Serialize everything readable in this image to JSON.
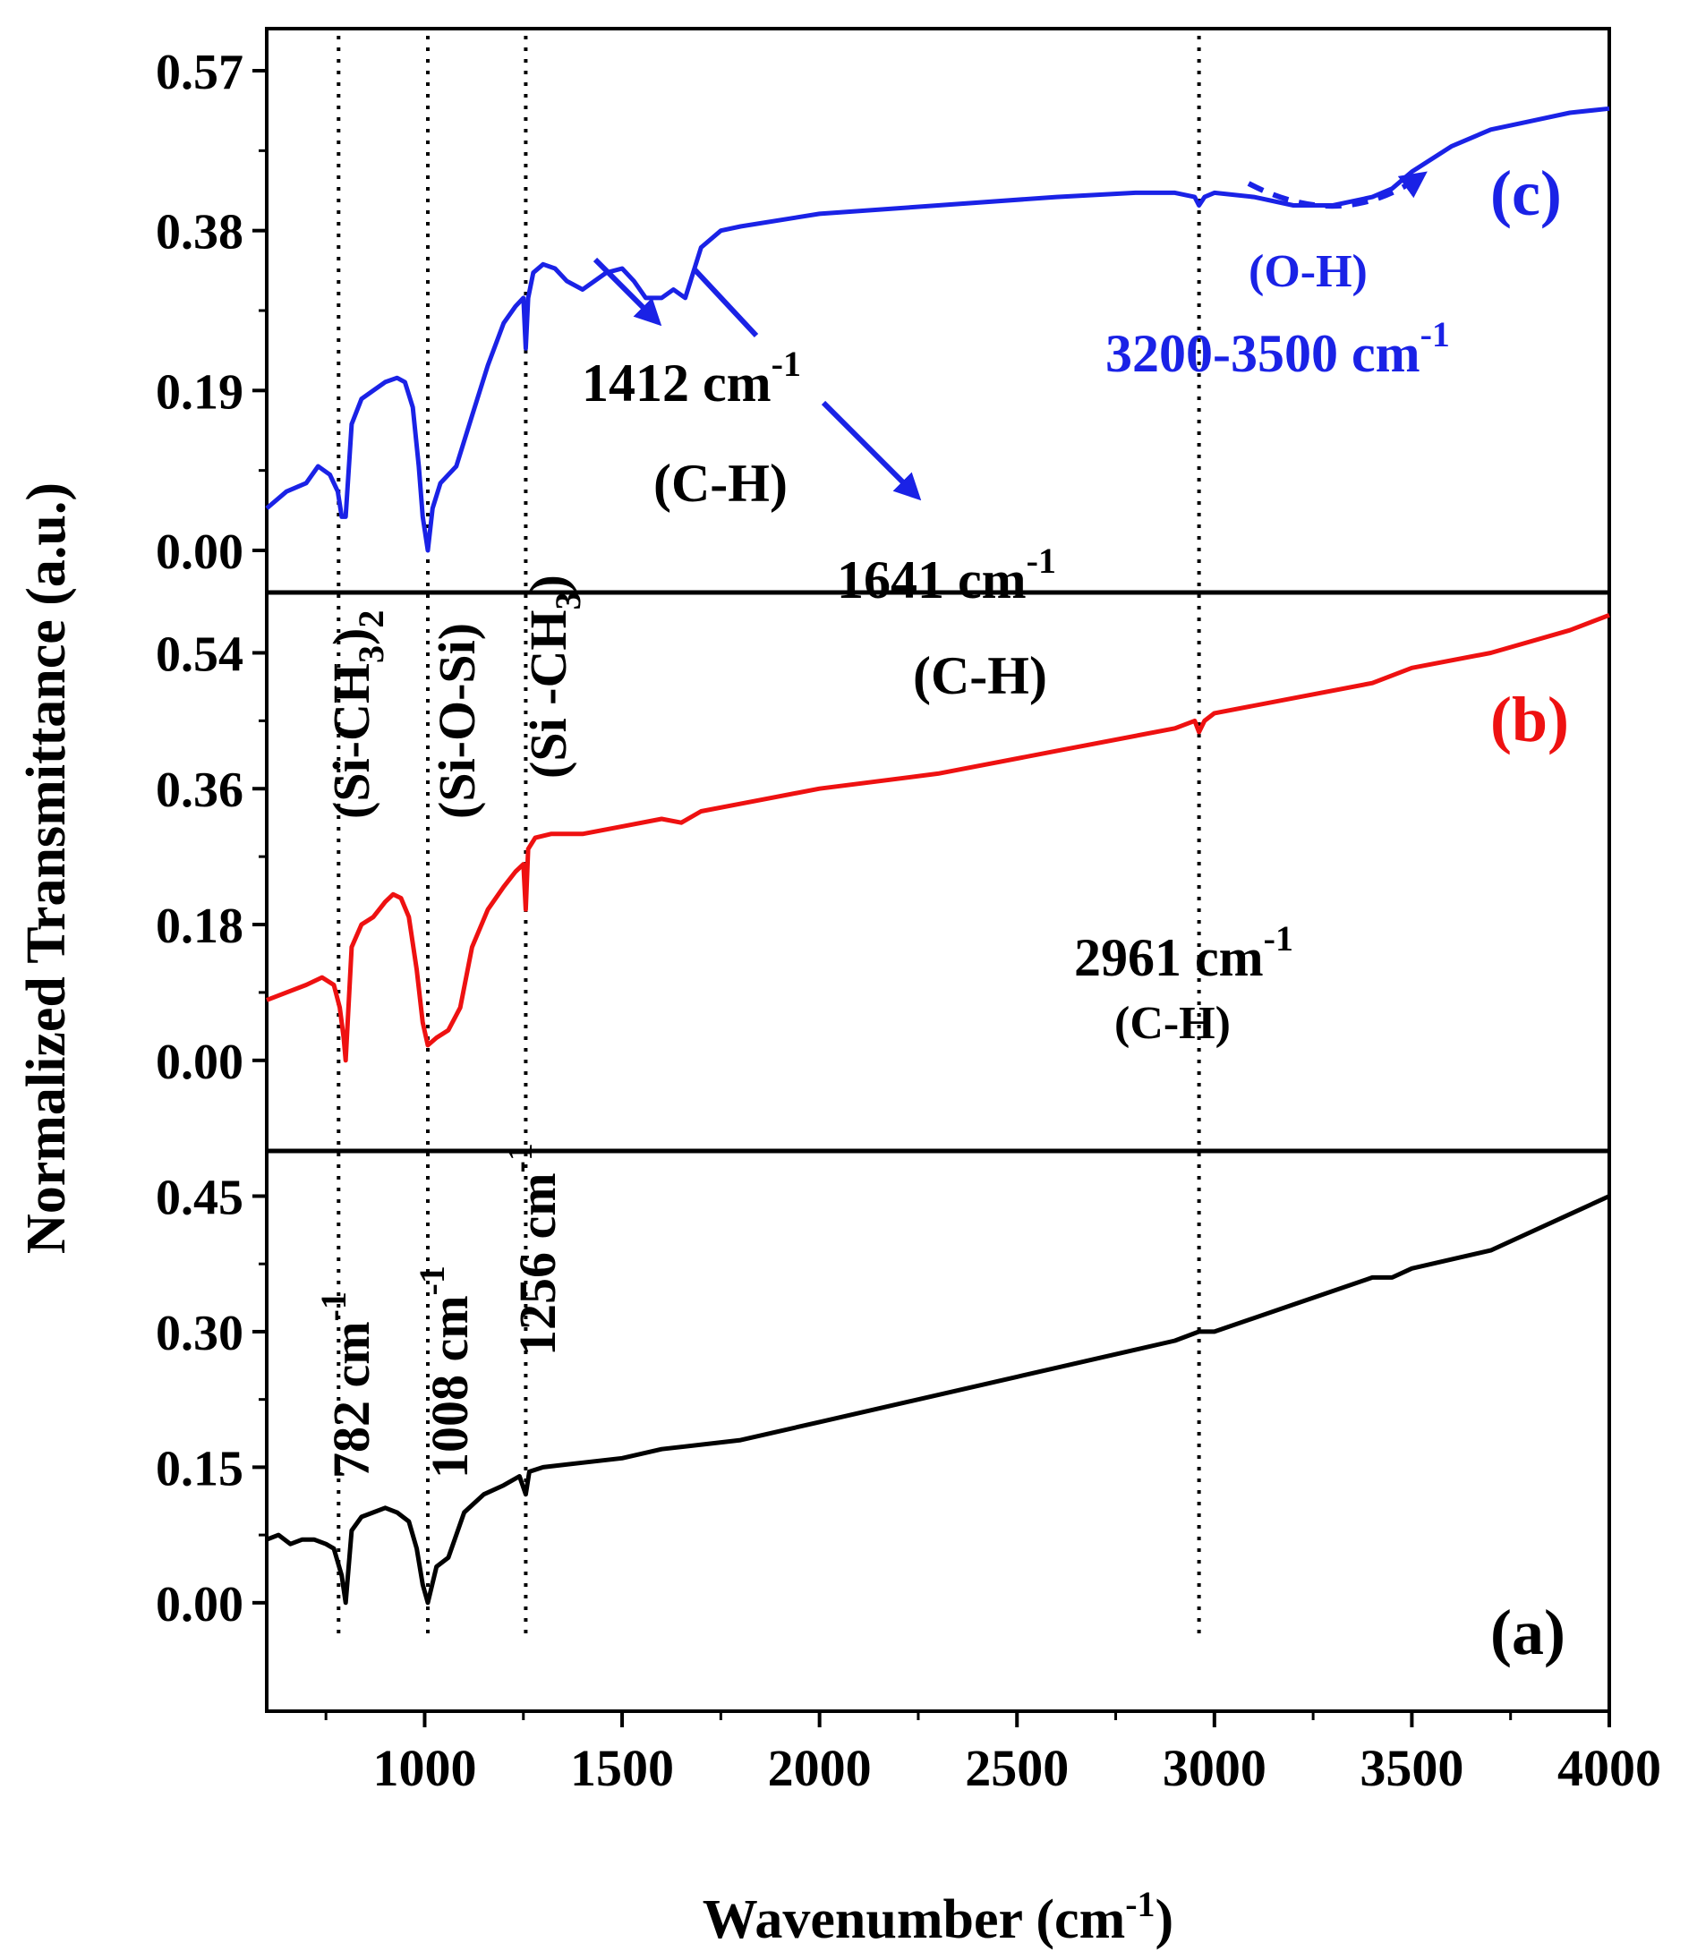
{
  "chart_data": {
    "type": "line",
    "title": "",
    "xlabel_main": "Wavenumber (cm",
    "xlabel_sup": "-1",
    "xlabel_tail": ")",
    "ylabel": "Normalized Transmittance (a.u.)",
    "xlim": [
      600,
      4000
    ],
    "x_ticks": [
      "1000",
      "1500",
      "2000",
      "2500",
      "3000",
      "3500",
      "4000"
    ],
    "x_tick_values": [
      1000,
      1500,
      2000,
      2500,
      3000,
      3500,
      4000
    ],
    "panels": [
      {
        "id": "c",
        "label": "(c)",
        "color": "#1a22e6",
        "ylim": [
          -0.05,
          0.62
        ],
        "y_ticks": [
          "0.00",
          "0.19",
          "0.38",
          "0.57"
        ],
        "y_tick_values": [
          0,
          0.19,
          0.38,
          0.57
        ],
        "series": {
          "x": [
            600,
            650,
            700,
            730,
            760,
            780,
            790,
            800,
            815,
            840,
            870,
            900,
            930,
            950,
            970,
            985,
            995,
            1008,
            1020,
            1040,
            1080,
            1120,
            1160,
            1200,
            1230,
            1250,
            1256,
            1262,
            1275,
            1300,
            1330,
            1360,
            1400,
            1430,
            1460,
            1500,
            1530,
            1560,
            1600,
            1630,
            1660,
            1700,
            1750,
            1800,
            2000,
            2300,
            2600,
            2800,
            2900,
            2950,
            2961,
            2975,
            3000,
            3100,
            3200,
            3300,
            3400,
            3450,
            3500,
            3600,
            3700,
            3800,
            3900,
            4000
          ],
          "y": [
            0.05,
            0.07,
            0.08,
            0.1,
            0.09,
            0.07,
            0.04,
            0.04,
            0.15,
            0.18,
            0.19,
            0.2,
            0.205,
            0.2,
            0.17,
            0.1,
            0.04,
            0.0,
            0.05,
            0.08,
            0.1,
            0.16,
            0.22,
            0.27,
            0.29,
            0.3,
            0.24,
            0.3,
            0.33,
            0.34,
            0.335,
            0.32,
            0.31,
            0.32,
            0.33,
            0.335,
            0.32,
            0.3,
            0.3,
            0.31,
            0.3,
            0.36,
            0.38,
            0.385,
            0.4,
            0.41,
            0.42,
            0.425,
            0.425,
            0.42,
            0.41,
            0.42,
            0.425,
            0.42,
            0.41,
            0.41,
            0.42,
            0.43,
            0.45,
            0.48,
            0.5,
            0.51,
            0.52,
            0.525
          ]
        }
      },
      {
        "id": "b",
        "label": "(b)",
        "color": "#ee1111",
        "ylim": [
          -0.12,
          0.62
        ],
        "y_ticks": [
          "0.00",
          "0.18",
          "0.36",
          "0.54"
        ],
        "y_tick_values": [
          0,
          0.18,
          0.36,
          0.54
        ],
        "series": {
          "x": [
            600,
            650,
            700,
            740,
            770,
            785,
            795,
            800,
            815,
            840,
            870,
            900,
            920,
            940,
            960,
            980,
            995,
            1008,
            1030,
            1060,
            1090,
            1120,
            1160,
            1200,
            1230,
            1250,
            1256,
            1262,
            1280,
            1320,
            1400,
            1500,
            1600,
            1650,
            1700,
            1800,
            2000,
            2300,
            2600,
            2900,
            2950,
            2961,
            2975,
            3000,
            3200,
            3400,
            3500,
            3700,
            3900,
            4000
          ],
          "y": [
            0.08,
            0.09,
            0.1,
            0.11,
            0.1,
            0.07,
            0.03,
            0.0,
            0.15,
            0.18,
            0.19,
            0.21,
            0.22,
            0.215,
            0.19,
            0.12,
            0.05,
            0.02,
            0.03,
            0.04,
            0.07,
            0.15,
            0.2,
            0.23,
            0.25,
            0.26,
            0.2,
            0.28,
            0.295,
            0.3,
            0.3,
            0.31,
            0.32,
            0.315,
            0.33,
            0.34,
            0.36,
            0.38,
            0.41,
            0.44,
            0.45,
            0.435,
            0.45,
            0.46,
            0.48,
            0.5,
            0.52,
            0.54,
            0.57,
            0.59
          ]
        }
      },
      {
        "id": "a",
        "label": "(a)",
        "color": "#000000",
        "ylim": [
          -0.12,
          0.5
        ],
        "y_ticks": [
          "0.00",
          "0.15",
          "0.30",
          "0.45"
        ],
        "y_tick_values": [
          0,
          0.15,
          0.3,
          0.45
        ],
        "series": {
          "x": [
            600,
            630,
            660,
            690,
            720,
            750,
            770,
            790,
            800,
            815,
            840,
            870,
            900,
            930,
            960,
            980,
            995,
            1008,
            1030,
            1060,
            1100,
            1150,
            1200,
            1240,
            1256,
            1265,
            1300,
            1400,
            1500,
            1600,
            1800,
            2000,
            2200,
            2500,
            2700,
            2900,
            2961,
            3000,
            3200,
            3400,
            3450,
            3500,
            3600,
            3700,
            3800,
            3900,
            4000
          ],
          "y": [
            0.07,
            0.075,
            0.065,
            0.07,
            0.07,
            0.065,
            0.06,
            0.03,
            0.0,
            0.08,
            0.095,
            0.1,
            0.105,
            0.1,
            0.09,
            0.06,
            0.02,
            0.0,
            0.04,
            0.05,
            0.1,
            0.12,
            0.13,
            0.14,
            0.12,
            0.145,
            0.15,
            0.155,
            0.16,
            0.17,
            0.18,
            0.2,
            0.22,
            0.25,
            0.27,
            0.29,
            0.3,
            0.3,
            0.33,
            0.36,
            0.36,
            0.37,
            0.38,
            0.39,
            0.41,
            0.43,
            0.45
          ]
        }
      }
    ],
    "vlines": [
      782,
      1008,
      1256,
      2961
    ],
    "annotations": {
      "p782": "782 cm",
      "p1008": "1008 cm",
      "p1256": "1256 cm",
      "minus1": "-1",
      "si_ch3_2": "(Si-CH",
      "sub3": "3",
      "sub2": ")",
      "sub2b": "2",
      "si_o_si": "(Si-O-Si)",
      "si_ch3": "(Si -CH",
      "close": ")",
      "p1412": "1412 cm",
      "p1641": "1641 cm",
      "ch": "(C-H)",
      "oh": "(O-H)",
      "p3200": "3200-3500 cm",
      "p2961": "2961 cm"
    }
  }
}
